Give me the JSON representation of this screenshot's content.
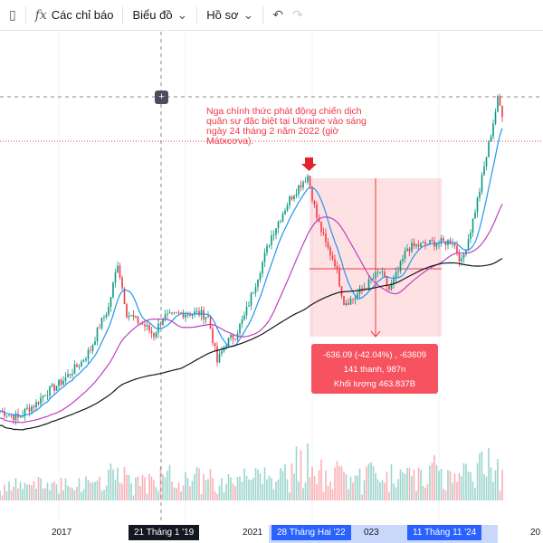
{
  "toolbar": {
    "indicators": "Các chỉ báo",
    "chart": "Biểu đồ",
    "profile": "Hồ sơ",
    "fx_icon": "fx",
    "chevron": "⌄",
    "undo": "↶",
    "redo": "↷"
  },
  "annotation": "Nga chính thức phát động chiến dịch quân sự đặc biệt tại Ukraine vào sáng ngày 24 tháng 2 năm 2022 (giờ Mátxcơva).",
  "measure": {
    "line1": "-636.09 (-42.04%) , -63609",
    "line2": "141 thanh, 987n",
    "line3": "Khối lượng 463.837B"
  },
  "xaxis": {
    "labels": [
      "2017",
      "2021",
      "023",
      "20"
    ],
    "crosshair": "21 Tháng 1 '19",
    "range_start": "28 Tháng Hai '22",
    "range_end": "11 Tháng 11 '24"
  },
  "colors": {
    "up": "#089981",
    "down": "#f23645",
    "measure": "#f7525f",
    "blue": "#2962ff"
  },
  "chart_data": {
    "type": "candlestick",
    "ylim": [
      0,
      100
    ],
    "closes": [
      4,
      3,
      2,
      4.5,
      6,
      9,
      10.5,
      12.5,
      15,
      17.5,
      21,
      27.5,
      32.5,
      45,
      31,
      29,
      27.5,
      25,
      30,
      30,
      31,
      31,
      31,
      30,
      17.5,
      23,
      25,
      30,
      37.5,
      45,
      52.5,
      57.5,
      62.5,
      66,
      69,
      57.5,
      50,
      45,
      34,
      35,
      37.5,
      40,
      42.5,
      37.5,
      42.5,
      49,
      49.5,
      50,
      50.5,
      50.5,
      51,
      45,
      54,
      65,
      77.5,
      90,
      82.5
    ]
  }
}
